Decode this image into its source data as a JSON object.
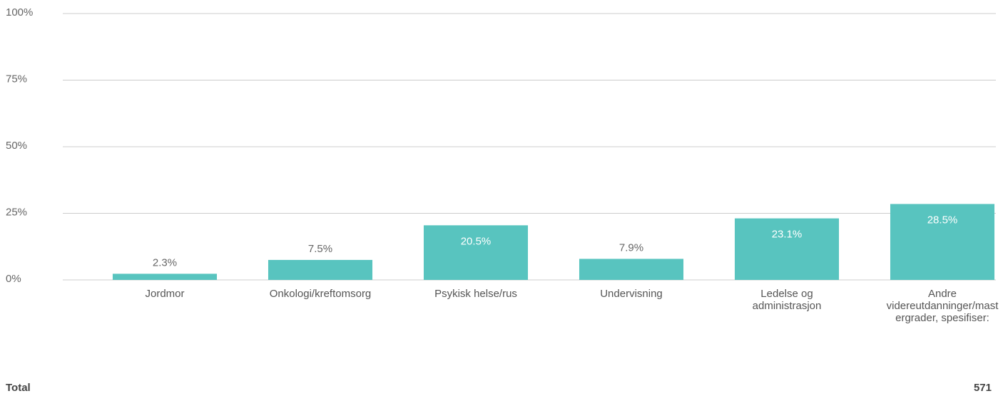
{
  "chart_data": {
    "type": "bar",
    "categories": [
      "Jordmor",
      "Onkologi/kreftomsorg",
      "Psykisk helse/rus",
      "Undervisning",
      "Ledelse og administrasjon",
      "Andre videreutdanninger/mastergrader, spesifiser:"
    ],
    "values": [
      2.3,
      7.5,
      20.5,
      7.9,
      23.1,
      28.5
    ],
    "value_labels": [
      "2.3%",
      "7.5%",
      "20.5%",
      "7.9%",
      "23.1%",
      "28.5%"
    ],
    "color": "#58c4bf",
    "ylim": [
      0,
      100
    ],
    "yticks": [
      {
        "value": 0,
        "label": "0%"
      },
      {
        "value": 25,
        "label": "25%"
      },
      {
        "value": 50,
        "label": "50%"
      },
      {
        "value": 75,
        "label": "75%"
      },
      {
        "value": 100,
        "label": "100%"
      }
    ],
    "grid": true,
    "footer_label": "Total",
    "total": 571
  }
}
